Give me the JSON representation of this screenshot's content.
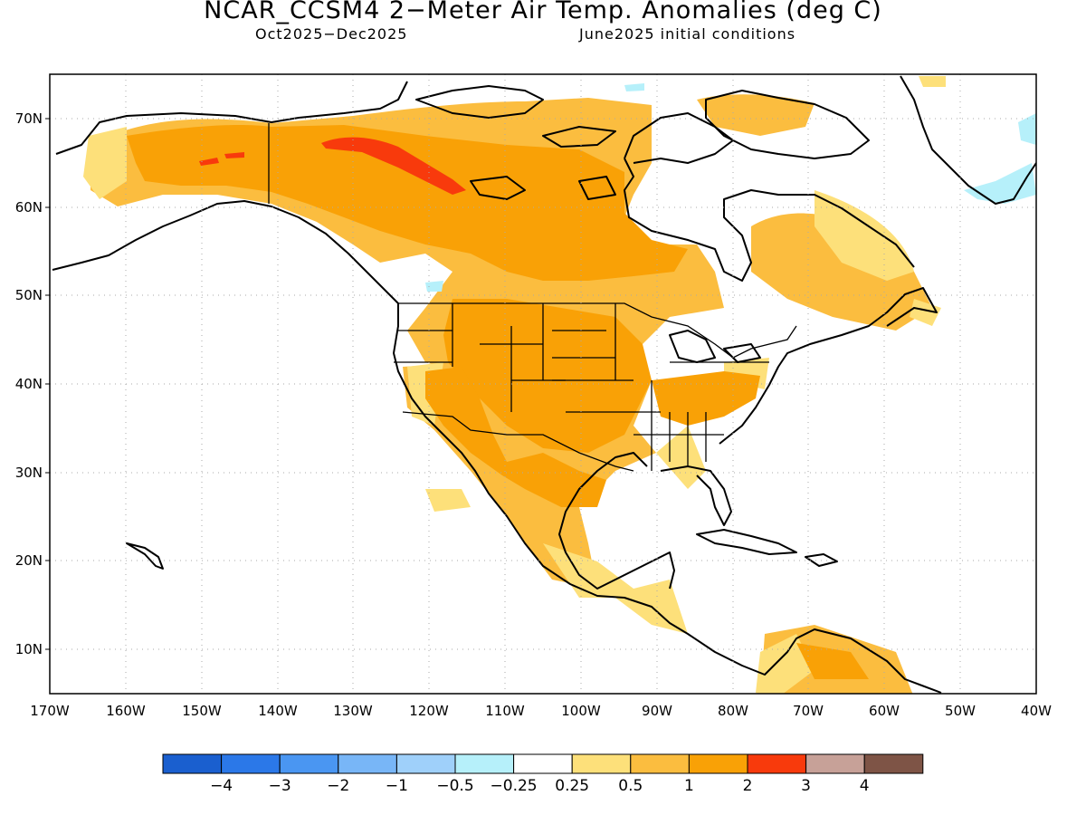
{
  "header": {
    "title": "NCAR_CCSM4 2−Meter Air Temp. Anomalies (deg C)",
    "period": "Oct2025−Dec2025",
    "init": "June2025 initial conditions"
  },
  "map": {
    "region": "North America",
    "lon_range": [
      -170,
      -40
    ],
    "lat_range": [
      5,
      75
    ],
    "grid": "dotted",
    "lat_ticks": [
      {
        "value": 70,
        "label": "70N"
      },
      {
        "value": 60,
        "label": "60N"
      },
      {
        "value": 50,
        "label": "50N"
      },
      {
        "value": 40,
        "label": "40N"
      },
      {
        "value": 30,
        "label": "30N"
      },
      {
        "value": 20,
        "label": "20N"
      },
      {
        "value": 10,
        "label": "10N"
      }
    ],
    "lon_ticks": [
      {
        "value": -170,
        "label": "170W"
      },
      {
        "value": -160,
        "label": "160W"
      },
      {
        "value": -150,
        "label": "150W"
      },
      {
        "value": -140,
        "label": "140W"
      },
      {
        "value": -130,
        "label": "130W"
      },
      {
        "value": -120,
        "label": "120W"
      },
      {
        "value": -110,
        "label": "110W"
      },
      {
        "value": -100,
        "label": "100W"
      },
      {
        "value": -90,
        "label": "90W"
      },
      {
        "value": -80,
        "label": "80W"
      },
      {
        "value": -70,
        "label": "70W"
      },
      {
        "value": -60,
        "label": "60W"
      },
      {
        "value": -50,
        "label": "50W"
      },
      {
        "value": -40,
        "label": "40W"
      }
    ]
  },
  "colorbar": {
    "colors": [
      "#1a5fcf",
      "#2b78e8",
      "#4a96f2",
      "#78b6f7",
      "#9fd0fa",
      "#b6f0fa",
      "#ffffff",
      "#fde07a",
      "#fbbd3f",
      "#f9a106",
      "#f83a0c",
      "#c7a198",
      "#7e5446"
    ],
    "labels": [
      "−4",
      "−3",
      "−2",
      "−1",
      "−0.5",
      "−0.25",
      "0.25",
      "0.5",
      "1",
      "2",
      "3",
      "4"
    ]
  },
  "legend_colors": {
    "weak_warm": "#fde07a",
    "moderate_warm": "#fbbd3f",
    "strong_warm": "#f9a106",
    "extreme_warm": "#f83a0c",
    "weak_cool": "#b6f0fa"
  }
}
